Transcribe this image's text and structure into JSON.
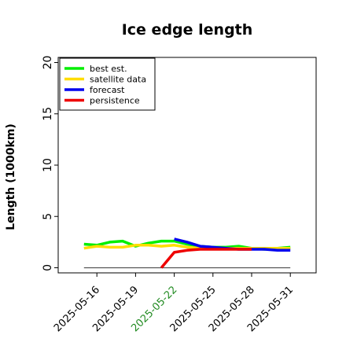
{
  "chart_data": {
    "type": "line",
    "title": "Ice edge length",
    "xlabel": "",
    "ylabel": "Length (1000km)",
    "ylim": [
      -0.5,
      20.5
    ],
    "yticks": [
      0,
      5,
      10,
      15,
      20
    ],
    "ytick_labels": [
      "0",
      "5",
      "10",
      "15",
      "20"
    ],
    "xlim": [
      "2025-05-13",
      "2025-06-02"
    ],
    "xticks": [
      "2025-05-16",
      "2025-05-19",
      "2025-05-22",
      "2025-05-25",
      "2025-05-28",
      "2025-05-31"
    ],
    "xtick_labels": [
      "2025-05-16",
      "2025-05-19",
      "2025-05-22",
      "2025-05-25",
      "2025-05-28",
      "2025-05-31"
    ],
    "highlighted_xtick": "2025-05-22",
    "grid": false,
    "legend_position": "top-left",
    "series": [
      {
        "name": "best est.",
        "color": "#00ee00",
        "points": [
          [
            "2025-05-15",
            2.3
          ],
          [
            "2025-05-16",
            2.2
          ],
          [
            "2025-05-17",
            2.5
          ],
          [
            "2025-05-18",
            2.6
          ],
          [
            "2025-05-19",
            2.1
          ],
          [
            "2025-05-20",
            2.4
          ],
          [
            "2025-05-21",
            2.6
          ],
          [
            "2025-05-22",
            2.6
          ],
          [
            "2025-05-23",
            2.3
          ],
          [
            "2025-05-24",
            2.1
          ],
          [
            "2025-05-25",
            2.0
          ],
          [
            "2025-05-26",
            2.0
          ],
          [
            "2025-05-27",
            2.1
          ],
          [
            "2025-05-28",
            1.9
          ],
          [
            "2025-05-29",
            1.8
          ],
          [
            "2025-05-30",
            1.9
          ],
          [
            "2025-05-31",
            2.0
          ]
        ]
      },
      {
        "name": "satellite data",
        "color": "#ffdd00",
        "points": [
          [
            "2025-05-15",
            1.9
          ],
          [
            "2025-05-16",
            2.1
          ],
          [
            "2025-05-17",
            2.0
          ],
          [
            "2025-05-18",
            2.0
          ],
          [
            "2025-05-19",
            2.2
          ],
          [
            "2025-05-20",
            2.2
          ],
          [
            "2025-05-21",
            2.1
          ],
          [
            "2025-05-22",
            2.2
          ],
          [
            "2025-05-23",
            2.0
          ],
          [
            "2025-05-24",
            1.9
          ],
          [
            "2025-05-25",
            1.9
          ],
          [
            "2025-05-26",
            1.9
          ],
          [
            "2025-05-27",
            1.9
          ],
          [
            "2025-05-28",
            1.9
          ],
          [
            "2025-05-29",
            1.9
          ],
          [
            "2025-05-30",
            1.9
          ],
          [
            "2025-05-31",
            1.9
          ]
        ]
      },
      {
        "name": "forecast",
        "color": "#0000ee",
        "points": [
          [
            "2025-05-22",
            2.8
          ],
          [
            "2025-05-23",
            2.5
          ],
          [
            "2025-05-24",
            2.1
          ],
          [
            "2025-05-25",
            2.0
          ],
          [
            "2025-05-26",
            1.9
          ],
          [
            "2025-05-27",
            1.8
          ],
          [
            "2025-05-28",
            1.8
          ],
          [
            "2025-05-29",
            1.8
          ],
          [
            "2025-05-30",
            1.7
          ],
          [
            "2025-05-31",
            1.7
          ]
        ]
      },
      {
        "name": "persistence",
        "color": "#ee0000",
        "points": [
          [
            "2025-05-21",
            0.0
          ],
          [
            "2025-05-22",
            1.5
          ],
          [
            "2025-05-23",
            1.7
          ],
          [
            "2025-05-24",
            1.8
          ],
          [
            "2025-05-25",
            1.8
          ],
          [
            "2025-05-26",
            1.8
          ],
          [
            "2025-05-27",
            1.8
          ],
          [
            "2025-05-28",
            1.8
          ]
        ]
      }
    ],
    "reference_line": {
      "y": 0,
      "from": "2025-05-15",
      "to": "2025-05-31",
      "color": "#555555"
    }
  }
}
